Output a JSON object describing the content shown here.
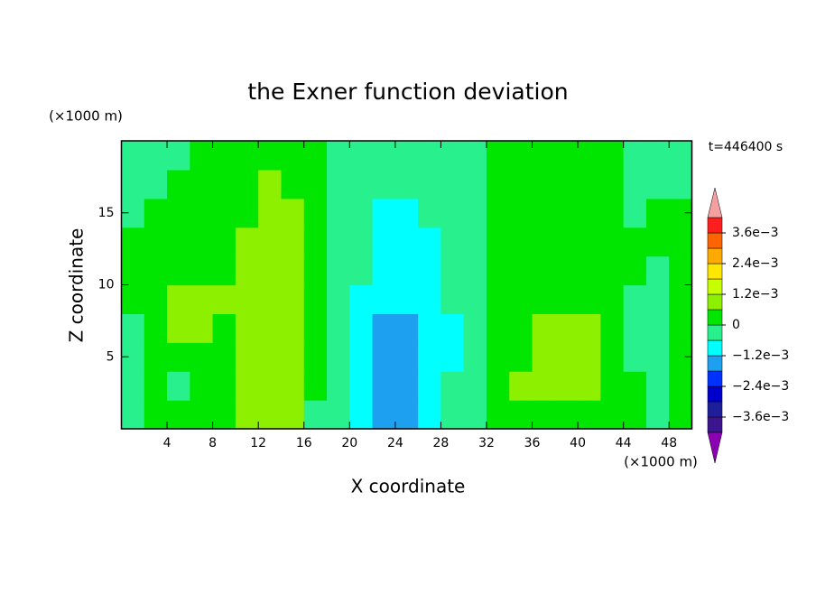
{
  "chart_data": {
    "type": "contour",
    "title": "the Exner function deviation",
    "xlabel": "X coordinate",
    "ylabel": "Z coordinate",
    "x_unit_label": "(×1000 m)",
    "y_unit_label": "(×1000 m)",
    "annotation": "t=446400 s",
    "x": [
      1,
      3,
      5,
      7,
      9,
      11,
      13,
      15,
      17,
      19,
      21,
      23,
      25,
      27,
      29,
      31,
      33,
      35,
      37,
      39,
      41,
      43,
      45,
      47,
      49
    ],
    "y": [
      1,
      3,
      5,
      7,
      9,
      11,
      13,
      15,
      17,
      19
    ],
    "values": [
      [
        -0.0003,
        0.0003,
        0.0003,
        0.0003,
        0.0003,
        0.0009,
        0.0009,
        0.0009,
        -0.0003,
        -0.0003,
        -0.0009,
        -0.0015,
        -0.0015,
        -0.0009,
        -0.0003,
        -0.0003,
        0.0003,
        0.0003,
        0.0003,
        0.0003,
        0.0003,
        0.0003,
        0.0003,
        -0.0003,
        0.0003
      ],
      [
        -0.0003,
        0.0003,
        -0.0003,
        0.0003,
        0.0003,
        0.0009,
        0.0009,
        0.0009,
        0.0003,
        -0.0003,
        -0.0009,
        -0.0015,
        -0.0015,
        -0.0009,
        -0.0003,
        -0.0003,
        0.0003,
        0.0009,
        0.0009,
        0.0009,
        0.0009,
        0.0003,
        0.0003,
        -0.0003,
        0.0003
      ],
      [
        -0.0003,
        0.0003,
        0.0003,
        0.0003,
        0.0003,
        0.0009,
        0.0009,
        0.0009,
        0.0003,
        -0.0003,
        -0.0009,
        -0.0015,
        -0.0015,
        -0.0009,
        -0.0009,
        -0.0003,
        0.0003,
        0.0003,
        0.0009,
        0.0009,
        0.0009,
        0.0003,
        -0.0003,
        -0.0003,
        0.0003
      ],
      [
        -0.0003,
        0.0003,
        0.0009,
        0.0009,
        0.0003,
        0.0009,
        0.0009,
        0.0009,
        0.0003,
        -0.0003,
        -0.0009,
        -0.0015,
        -0.0015,
        -0.0009,
        -0.0009,
        -0.0003,
        0.0003,
        0.0003,
        0.0009,
        0.0009,
        0.0009,
        0.0003,
        -0.0003,
        -0.0003,
        0.0003
      ],
      [
        0.0003,
        0.0003,
        0.0009,
        0.0009,
        0.0009,
        0.0009,
        0.0009,
        0.0009,
        0.0003,
        -0.0003,
        -0.0009,
        -0.0009,
        -0.0009,
        -0.0009,
        -0.0003,
        -0.0003,
        0.0003,
        0.0003,
        0.0003,
        0.0003,
        0.0003,
        0.0003,
        -0.0003,
        -0.0003,
        0.0003
      ],
      [
        0.0003,
        0.0003,
        0.0003,
        0.0003,
        0.0003,
        0.0009,
        0.0009,
        0.0009,
        0.0003,
        -0.0003,
        -0.0003,
        -0.0009,
        -0.0009,
        -0.0009,
        -0.0003,
        -0.0003,
        0.0003,
        0.0003,
        0.0003,
        0.0003,
        0.0003,
        0.0003,
        0.0003,
        -0.0003,
        0.0003
      ],
      [
        0.0003,
        0.0003,
        0.0003,
        0.0003,
        0.0003,
        0.0009,
        0.0009,
        0.0009,
        0.0003,
        -0.0003,
        -0.0003,
        -0.0009,
        -0.0009,
        -0.0009,
        -0.0003,
        -0.0003,
        0.0003,
        0.0003,
        0.0003,
        0.0003,
        0.0003,
        0.0003,
        0.0003,
        0.0003,
        0.0003
      ],
      [
        -0.0003,
        0.0003,
        0.0003,
        0.0003,
        0.0003,
        0.0003,
        0.0009,
        0.0009,
        0.0003,
        -0.0003,
        -0.0003,
        -0.0009,
        -0.0009,
        -0.0003,
        -0.0003,
        -0.0003,
        0.0003,
        0.0003,
        0.0003,
        0.0003,
        0.0003,
        0.0003,
        -0.0003,
        0.0003,
        0.0003
      ],
      [
        -0.0003,
        -0.0003,
        0.0003,
        0.0003,
        0.0003,
        0.0003,
        0.0009,
        0.0003,
        0.0003,
        -0.0003,
        -0.0003,
        -0.0003,
        -0.0003,
        -0.0003,
        -0.0003,
        -0.0003,
        0.0003,
        0.0003,
        0.0003,
        0.0003,
        0.0003,
        0.0003,
        -0.0003,
        -0.0003,
        -0.0003
      ],
      [
        -0.0003,
        -0.0003,
        -0.0003,
        0.0003,
        0.0003,
        0.0003,
        0.0003,
        0.0003,
        0.0003,
        -0.0003,
        -0.0003,
        -0.0003,
        -0.0003,
        -0.0003,
        -0.0003,
        -0.0003,
        0.0003,
        0.0003,
        0.0003,
        0.0003,
        0.0003,
        0.0003,
        -0.0003,
        -0.0003,
        -0.0003
      ]
    ],
    "xlim": [
      0,
      50
    ],
    "ylim": [
      0,
      20
    ],
    "xticks": [
      4,
      8,
      12,
      16,
      20,
      24,
      28,
      32,
      36,
      40,
      44,
      48
    ],
    "yticks": [
      5,
      10,
      15
    ],
    "levels": [
      -0.0042,
      -0.0036,
      -0.003,
      -0.0024,
      -0.0018,
      -0.0012,
      -0.0006,
      0,
      0.0006,
      0.0012,
      0.0018,
      0.0024,
      0.003,
      0.0036,
      0.0042
    ],
    "colors": [
      "#3c1490",
      "#1e1e9a",
      "#0000cc",
      "#0032ff",
      "#1ea0f0",
      "#00ffff",
      "#28f08c",
      "#00e600",
      "#8cf000",
      "#c8ff00",
      "#ffe600",
      "#ffaa00",
      "#ff6400",
      "#ff1e1e"
    ],
    "under_color": "#8c00b4",
    "over_color": "#f4a0a0",
    "colorbar_ticks": [
      {
        "value": 0.0036,
        "label": "3.6e−3"
      },
      {
        "value": 0.0024,
        "label": "2.4e−3"
      },
      {
        "value": 0.0012,
        "label": "1.2e−3"
      },
      0,
      {
        "value": -0.0012,
        "label": "−1.2e−3"
      },
      {
        "value": -0.0024,
        "label": "−2.4e−3"
      },
      {
        "value": -0.0036,
        "label": "−3.6e−3"
      }
    ]
  }
}
